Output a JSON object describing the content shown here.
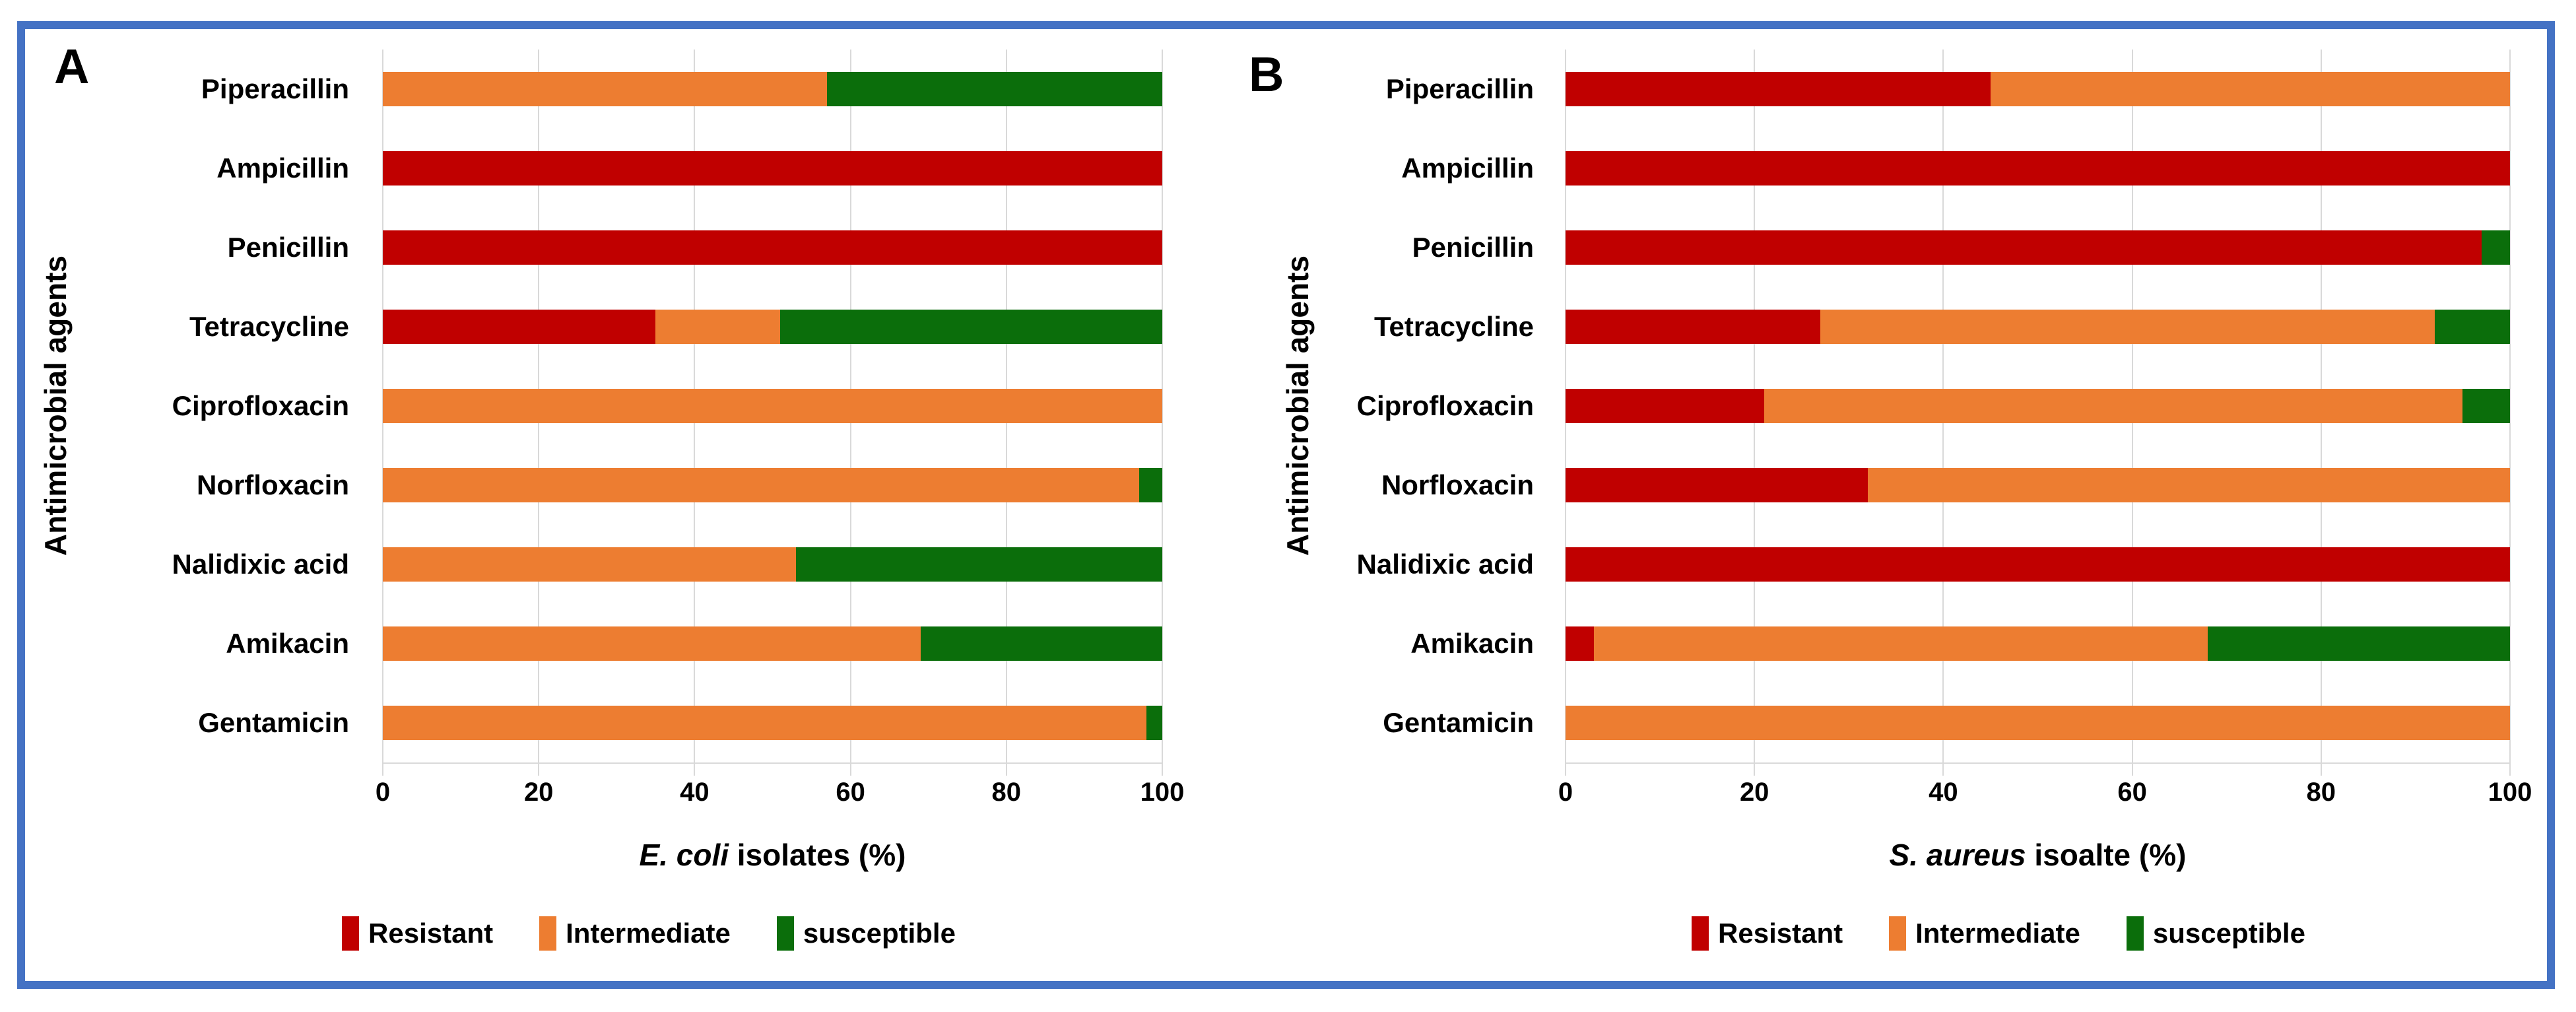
{
  "figure": {
    "border_color": "#4472C4",
    "background": "#FFFFFF",
    "gridline_color": "#D9D9D9",
    "series_colors": {
      "resistant": "#C00000",
      "intermediate": "#ED7D31",
      "susceptible": "#0B6E0B"
    }
  },
  "chart_data": [
    {
      "type": "bar",
      "orientation": "horizontal",
      "stacked": true,
      "panel_label": "A",
      "ylabel": "Antimicrobial agents",
      "xlabel": "E. coli isolates (%)",
      "xlabel_parts": [
        {
          "text": "E. coli",
          "italic": true
        },
        {
          "text": " isolates (%)",
          "italic": false
        }
      ],
      "xlim": [
        0,
        100
      ],
      "x_ticks": [
        0,
        20,
        40,
        60,
        80,
        100
      ],
      "grid": true,
      "legend_position": "bottom",
      "categories": [
        "Piperacillin",
        "Ampicillin",
        "Penicillin",
        "Tetracycline",
        "Ciprofloxacin",
        "Norfloxacin",
        "Nalidixic acid",
        "Amikacin",
        "Gentamicin"
      ],
      "series": [
        {
          "name": "Resistant",
          "color": "#C00000",
          "values": [
            0,
            100,
            100,
            35,
            0,
            0,
            0,
            0,
            0
          ]
        },
        {
          "name": "Intermediate",
          "color": "#ED7D31",
          "values": [
            57,
            0,
            0,
            16,
            100,
            97,
            53,
            69,
            98
          ]
        },
        {
          "name": "susceptible",
          "color": "#0B6E0B",
          "values": [
            43,
            0,
            0,
            49,
            0,
            3,
            47,
            31,
            2
          ]
        }
      ]
    },
    {
      "type": "bar",
      "orientation": "horizontal",
      "stacked": true,
      "panel_label": "B",
      "ylabel": "Antimicrobial agents",
      "xlabel": "S. aureus isoalte (%)",
      "xlabel_parts": [
        {
          "text": "S. aureus",
          "italic": true
        },
        {
          "text": " isoalte (%)",
          "italic": false
        }
      ],
      "xlim": [
        0,
        100
      ],
      "x_ticks": [
        0,
        20,
        40,
        60,
        80,
        100
      ],
      "grid": true,
      "legend_position": "bottom",
      "categories": [
        "Piperacillin",
        "Ampicillin",
        "Penicillin",
        "Tetracycline",
        "Ciprofloxacin",
        "Norfloxacin",
        "Nalidixic acid",
        "Amikacin",
        "Gentamicin"
      ],
      "series": [
        {
          "name": "Resistant",
          "color": "#C00000",
          "values": [
            45,
            100,
            97,
            27,
            21,
            32,
            100,
            3,
            0
          ]
        },
        {
          "name": "Intermediate",
          "color": "#ED7D31",
          "values": [
            55,
            0,
            0,
            65,
            74,
            68,
            0,
            65,
            100
          ]
        },
        {
          "name": "susceptible",
          "color": "#0B6E0B",
          "values": [
            0,
            0,
            3,
            8,
            5,
            0,
            0,
            32,
            0
          ]
        }
      ]
    }
  ]
}
